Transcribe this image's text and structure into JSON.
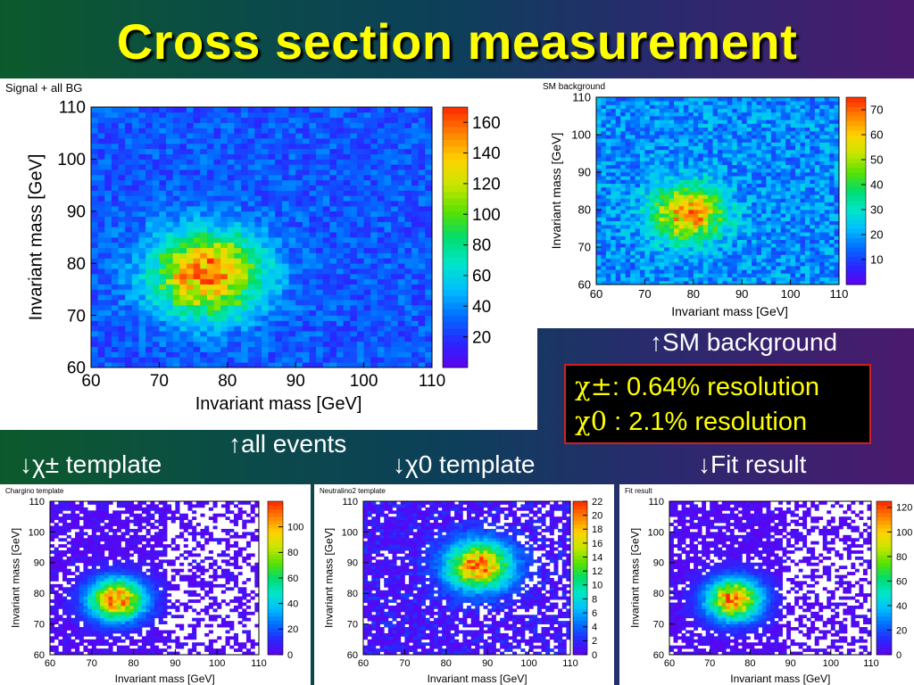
{
  "title": "Cross section measurement",
  "captions": {
    "sm_background": "↑SM background",
    "all_events": "↑all events",
    "chi_pm_template": "↓χ± template",
    "chi_0_template": "↓χ0 template",
    "fit_result": "↓Fit result"
  },
  "results": [
    {
      "symbol": "χ±",
      "text": ": 0.64% resolution"
    },
    {
      "symbol": "χ0",
      "text": " : 2.1% resolution"
    }
  ],
  "colors": {
    "title": "#ffff00",
    "result_text": "#ffff00",
    "result_border": "#cc2222"
  },
  "chart_data": [
    {
      "id": "signal_all_bg",
      "type": "heatmap",
      "title": "Signal + all BG",
      "xlabel": "Invariant mass [GeV]",
      "ylabel": "Invariant mass [GeV]",
      "xlim": [
        60,
        110
      ],
      "ylim": [
        60,
        110
      ],
      "xticks": [
        "60",
        "70",
        "80",
        "90",
        "100",
        "110"
      ],
      "yticks": [
        "60",
        "70",
        "80",
        "90",
        "100",
        "110"
      ],
      "zlim": [
        0,
        170
      ],
      "zticks": [
        "20",
        "40",
        "60",
        "80",
        "100",
        "120",
        "140",
        "160"
      ],
      "peak": {
        "x": 77,
        "y": 78,
        "value": 165
      },
      "background_level": 28
    },
    {
      "id": "sm_background",
      "type": "heatmap",
      "title": "SM background",
      "xlabel": "Invariant mass [GeV]",
      "ylabel": "Invariant mass [GeV]",
      "xlim": [
        60,
        110
      ],
      "ylim": [
        60,
        110
      ],
      "xticks": [
        "60",
        "70",
        "80",
        "90",
        "100",
        "110"
      ],
      "yticks": [
        "60",
        "70",
        "80",
        "90",
        "100",
        "110"
      ],
      "zlim": [
        0,
        75
      ],
      "zticks": [
        "10",
        "20",
        "30",
        "40",
        "50",
        "60",
        "70"
      ],
      "peak": {
        "x": 79,
        "y": 79,
        "value": 70
      },
      "background_level": 18
    },
    {
      "id": "chargino_template",
      "type": "heatmap",
      "title": "Chargino template",
      "xlabel": "Invariant mass [GeV]",
      "ylabel": "Invariant mass [GeV]",
      "xlim": [
        60,
        110
      ],
      "ylim": [
        60,
        110
      ],
      "xticks": [
        "60",
        "70",
        "80",
        "90",
        "100",
        "110"
      ],
      "yticks": [
        "60",
        "70",
        "80",
        "90",
        "100",
        "110"
      ],
      "zlim": [
        0,
        120
      ],
      "zticks": [
        "0",
        "20",
        "40",
        "60",
        "80",
        "100"
      ],
      "peak": {
        "x": 76,
        "y": 78,
        "value": 115
      },
      "background_level": 6
    },
    {
      "id": "neutralino2_template",
      "type": "heatmap",
      "title": "Neutralino2 template",
      "xlabel": "Invariant mass [GeV]",
      "ylabel": "Invariant mass [GeV]",
      "xlim": [
        60,
        110
      ],
      "ylim": [
        60,
        110
      ],
      "xticks": [
        "60",
        "70",
        "80",
        "90",
        "100",
        "110"
      ],
      "yticks": [
        "60",
        "70",
        "80",
        "90",
        "100",
        "110"
      ],
      "zlim": [
        0,
        22
      ],
      "zticks": [
        "0",
        "2",
        "4",
        "6",
        "8",
        "10",
        "12",
        "14",
        "16",
        "18",
        "20",
        "22"
      ],
      "peak": {
        "x": 88,
        "y": 89,
        "value": 22
      },
      "background_level": 2
    },
    {
      "id": "fit_result",
      "type": "heatmap",
      "title": "Fit result",
      "xlabel": "Invariant mass [GeV]",
      "ylabel": "Invariant mass [GeV]",
      "xlim": [
        60,
        110
      ],
      "ylim": [
        60,
        110
      ],
      "xticks": [
        "60",
        "70",
        "80",
        "90",
        "100",
        "110"
      ],
      "yticks": [
        "60",
        "70",
        "80",
        "90",
        "100",
        "110"
      ],
      "zlim": [
        0,
        125
      ],
      "zticks": [
        "0",
        "20",
        "40",
        "60",
        "80",
        "100",
        "120"
      ],
      "peak": {
        "x": 76,
        "y": 78,
        "value": 120
      },
      "background_level": 6
    }
  ]
}
